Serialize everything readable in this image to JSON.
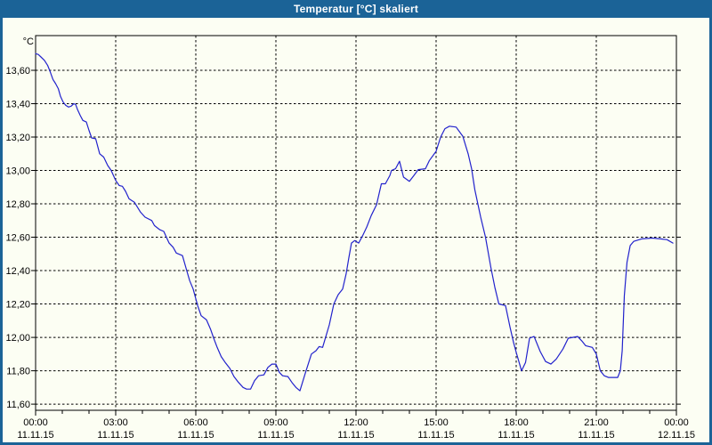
{
  "window": {
    "title": "Temperatur [°C] skaliert"
  },
  "colors": {
    "titlebar_bg": "#1B6397",
    "window_border": "#1B6397",
    "content_bg": "#FCFEF3",
    "title_text": "#FFFFFF",
    "line": "#2222CC",
    "grid": "#000000",
    "frame": "#000000",
    "text": "#000000"
  },
  "chart_data": {
    "type": "line",
    "title": "Temperatur [°C] skaliert",
    "y_unit_label": "°C",
    "xlim": [
      0,
      24
    ],
    "ylim": [
      11.563,
      13.808
    ],
    "grid": "dashed",
    "legend": "none",
    "x_minor_tick_interval_hours": 1,
    "x_major_ticks": [
      {
        "hour": 0,
        "time": "00:00",
        "date": "11.11.15"
      },
      {
        "hour": 3,
        "time": "03:00",
        "date": "11.11.15"
      },
      {
        "hour": 6,
        "time": "06:00",
        "date": "11.11.15"
      },
      {
        "hour": 9,
        "time": "09:00",
        "date": "11.11.15"
      },
      {
        "hour": 12,
        "time": "12:00",
        "date": "11.11.15"
      },
      {
        "hour": 15,
        "time": "15:00",
        "date": "11.11.15"
      },
      {
        "hour": 18,
        "time": "18:00",
        "date": "11.11.15"
      },
      {
        "hour": 21,
        "time": "21:00",
        "date": "11.11.15"
      },
      {
        "hour": 24,
        "time": "00:00",
        "date": "12.11.15"
      }
    ],
    "y_ticks": [
      {
        "value": 13.6,
        "label": "13,60"
      },
      {
        "value": 13.4,
        "label": "13,40"
      },
      {
        "value": 13.2,
        "label": "13,20"
      },
      {
        "value": 13.0,
        "label": "13,00"
      },
      {
        "value": 12.8,
        "label": "12,80"
      },
      {
        "value": 12.6,
        "label": "12,60"
      },
      {
        "value": 12.4,
        "label": "12,40"
      },
      {
        "value": 12.2,
        "label": "12,20"
      },
      {
        "value": 12.0,
        "label": "12,00"
      },
      {
        "value": 11.8,
        "label": "11,80"
      },
      {
        "value": 11.6,
        "label": "11,60"
      }
    ],
    "series": [
      {
        "name": "Temperatur",
        "color": "#2222CC",
        "points": [
          [
            0.0,
            13.7
          ],
          [
            0.1,
            13.695
          ],
          [
            0.2,
            13.68
          ],
          [
            0.33,
            13.66
          ],
          [
            0.45,
            13.63
          ],
          [
            0.55,
            13.59
          ],
          [
            0.65,
            13.545
          ],
          [
            0.75,
            13.52
          ],
          [
            0.85,
            13.49
          ],
          [
            0.93,
            13.445
          ],
          [
            1.03,
            13.41
          ],
          [
            1.13,
            13.39
          ],
          [
            1.23,
            13.38
          ],
          [
            1.33,
            13.385
          ],
          [
            1.43,
            13.4
          ],
          [
            1.5,
            13.395
          ],
          [
            1.57,
            13.365
          ],
          [
            1.67,
            13.33
          ],
          [
            1.77,
            13.3
          ],
          [
            1.9,
            13.29
          ],
          [
            2.0,
            13.24
          ],
          [
            2.1,
            13.195
          ],
          [
            2.25,
            13.19
          ],
          [
            2.4,
            13.1
          ],
          [
            2.55,
            13.08
          ],
          [
            2.7,
            13.03
          ],
          [
            2.83,
            13.0
          ],
          [
            3.0,
            12.94
          ],
          [
            3.13,
            12.91
          ],
          [
            3.25,
            12.905
          ],
          [
            3.37,
            12.875
          ],
          [
            3.5,
            12.83
          ],
          [
            3.7,
            12.81
          ],
          [
            3.93,
            12.75
          ],
          [
            4.1,
            12.72
          ],
          [
            4.35,
            12.7
          ],
          [
            4.45,
            12.67
          ],
          [
            4.65,
            12.645
          ],
          [
            4.8,
            12.635
          ],
          [
            5.0,
            12.565
          ],
          [
            5.15,
            12.54
          ],
          [
            5.27,
            12.505
          ],
          [
            5.5,
            12.49
          ],
          [
            5.67,
            12.395
          ],
          [
            5.77,
            12.34
          ],
          [
            5.9,
            12.29
          ],
          [
            6.07,
            12.19
          ],
          [
            6.2,
            12.13
          ],
          [
            6.4,
            12.105
          ],
          [
            6.55,
            12.05
          ],
          [
            6.67,
            11.995
          ],
          [
            6.8,
            11.94
          ],
          [
            6.95,
            11.885
          ],
          [
            7.1,
            11.85
          ],
          [
            7.27,
            11.815
          ],
          [
            7.43,
            11.765
          ],
          [
            7.6,
            11.73
          ],
          [
            7.77,
            11.7
          ],
          [
            7.9,
            11.69
          ],
          [
            8.05,
            11.69
          ],
          [
            8.2,
            11.74
          ],
          [
            8.35,
            11.77
          ],
          [
            8.55,
            11.775
          ],
          [
            8.7,
            11.82
          ],
          [
            8.85,
            11.84
          ],
          [
            9.0,
            11.84
          ],
          [
            9.13,
            11.79
          ],
          [
            9.25,
            11.77
          ],
          [
            9.45,
            11.765
          ],
          [
            9.6,
            11.73
          ],
          [
            9.75,
            11.7
          ],
          [
            9.9,
            11.68
          ],
          [
            10.1,
            11.785
          ],
          [
            10.33,
            11.9
          ],
          [
            10.5,
            11.92
          ],
          [
            10.62,
            11.945
          ],
          [
            10.75,
            11.94
          ],
          [
            11.0,
            12.075
          ],
          [
            11.17,
            12.2
          ],
          [
            11.33,
            12.255
          ],
          [
            11.5,
            12.29
          ],
          [
            11.63,
            12.38
          ],
          [
            11.73,
            12.475
          ],
          [
            11.83,
            12.565
          ],
          [
            11.95,
            12.58
          ],
          [
            12.1,
            12.565
          ],
          [
            12.25,
            12.61
          ],
          [
            12.4,
            12.66
          ],
          [
            12.57,
            12.73
          ],
          [
            12.77,
            12.795
          ],
          [
            12.95,
            12.92
          ],
          [
            13.1,
            12.92
          ],
          [
            13.27,
            12.97
          ],
          [
            13.33,
            13.0
          ],
          [
            13.48,
            13.01
          ],
          [
            13.63,
            13.055
          ],
          [
            13.78,
            12.96
          ],
          [
            14.0,
            12.935
          ],
          [
            14.17,
            12.97
          ],
          [
            14.33,
            13.005
          ],
          [
            14.6,
            13.01
          ],
          [
            14.75,
            13.06
          ],
          [
            15.0,
            13.115
          ],
          [
            15.17,
            13.2
          ],
          [
            15.33,
            13.25
          ],
          [
            15.5,
            13.265
          ],
          [
            15.75,
            13.26
          ],
          [
            16.0,
            13.205
          ],
          [
            16.2,
            13.1
          ],
          [
            16.33,
            13.01
          ],
          [
            16.45,
            12.885
          ],
          [
            16.67,
            12.72
          ],
          [
            16.85,
            12.6
          ],
          [
            17.05,
            12.42
          ],
          [
            17.2,
            12.3
          ],
          [
            17.35,
            12.2
          ],
          [
            17.6,
            12.19
          ],
          [
            17.77,
            12.06
          ],
          [
            17.9,
            11.97
          ],
          [
            18.0,
            11.91
          ],
          [
            18.2,
            11.8
          ],
          [
            18.35,
            11.85
          ],
          [
            18.5,
            11.995
          ],
          [
            18.67,
            12.005
          ],
          [
            18.9,
            11.915
          ],
          [
            19.1,
            11.855
          ],
          [
            19.3,
            11.84
          ],
          [
            19.5,
            11.87
          ],
          [
            19.75,
            11.93
          ],
          [
            19.95,
            11.995
          ],
          [
            20.3,
            12.005
          ],
          [
            20.45,
            11.98
          ],
          [
            20.6,
            11.95
          ],
          [
            20.85,
            11.94
          ],
          [
            21.0,
            11.9
          ],
          [
            21.15,
            11.8
          ],
          [
            21.3,
            11.77
          ],
          [
            21.45,
            11.76
          ],
          [
            21.8,
            11.76
          ],
          [
            21.9,
            11.8
          ],
          [
            21.97,
            11.92
          ],
          [
            22.05,
            12.25
          ],
          [
            22.15,
            12.45
          ],
          [
            22.27,
            12.55
          ],
          [
            22.4,
            12.575
          ],
          [
            22.7,
            12.59
          ],
          [
            23.1,
            12.595
          ],
          [
            23.4,
            12.59
          ],
          [
            23.65,
            12.585
          ],
          [
            23.87,
            12.565
          ]
        ]
      }
    ]
  }
}
